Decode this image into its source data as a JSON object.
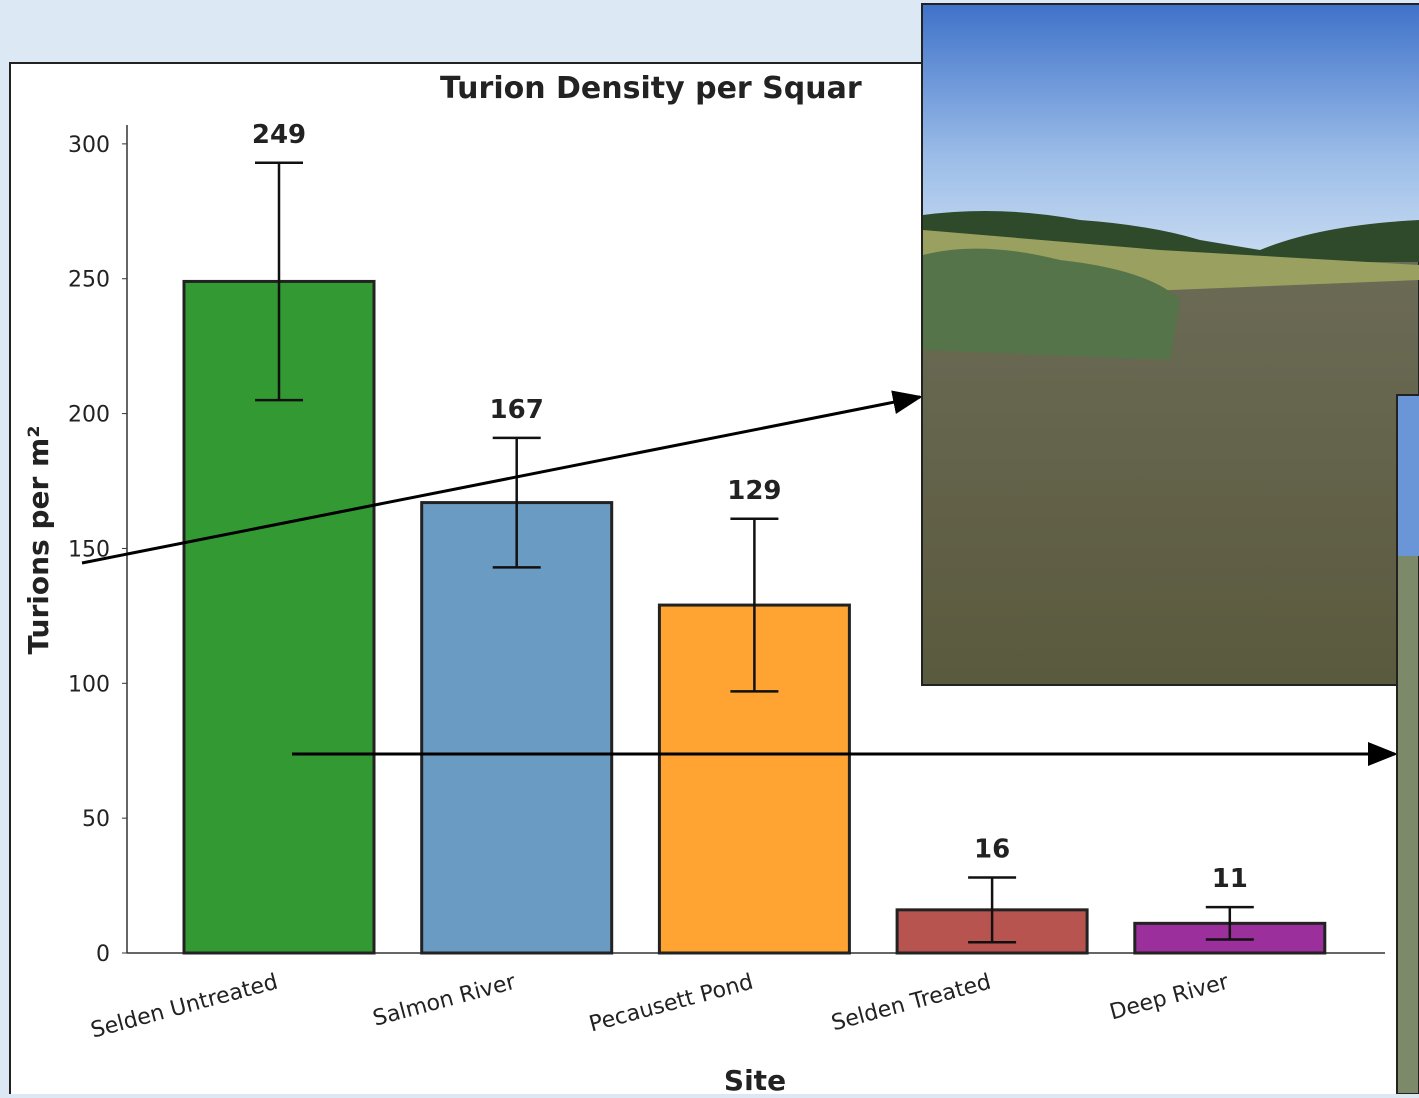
{
  "chart_data": {
    "type": "bar",
    "title": "Turion Density per Squar",
    "x_label": "Site",
    "y_label": "Turions per m²",
    "categories": [
      "Selden Untreated",
      "Salmon River",
      "Pecausett Pond",
      "Selden Treated",
      "Deep River"
    ],
    "values": [
      249,
      167,
      129,
      16,
      11
    ],
    "errors": [
      44,
      24,
      32,
      12,
      6
    ],
    "colors": [
      "#339933",
      "#6a9bc3",
      "#ffa333",
      "#b85450",
      "#9b2f9b"
    ],
    "ylim": [
      0,
      307
    ],
    "yticks": [
      0,
      50,
      100,
      150,
      200,
      250,
      300
    ]
  }
}
